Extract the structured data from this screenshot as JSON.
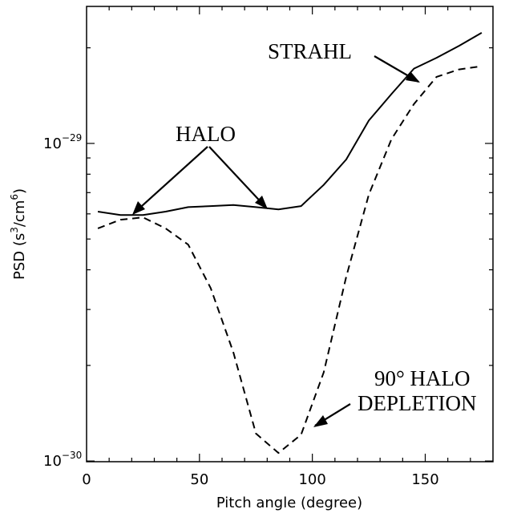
{
  "chart_data": {
    "type": "line",
    "title": "",
    "xlabel": "Pitch angle (degree)",
    "ylabel_main": "PSD (s",
    "ylabel_exp1": "3",
    "ylabel_mid": "/cm",
    "ylabel_exp2": "6",
    "ylabel_end": ")",
    "xlim": [
      0,
      180
    ],
    "ylim": [
      9.95e-31,
      2.7e-29
    ],
    "yscale": "log",
    "grid": false,
    "x_ticks": [
      0,
      50,
      100,
      150
    ],
    "x_tick_labels": [
      "0",
      "50",
      "100",
      "150"
    ],
    "y_major_ticks": [
      1e-30,
      1e-29
    ],
    "y_tick_labels": [
      {
        "base": "10",
        "exp": "−30"
      },
      {
        "base": "10",
        "exp": "−29"
      }
    ],
    "series": [
      {
        "style": "solid",
        "x": [
          5,
          15,
          25,
          35,
          45,
          55,
          65,
          75,
          85,
          95,
          105,
          115,
          125,
          135,
          145,
          155,
          165,
          175
        ],
        "values": [
          6.1e-30,
          5.95e-30,
          5.95e-30,
          6.1e-30,
          6.3e-30,
          6.35e-30,
          6.4e-30,
          6.3e-30,
          6.2e-30,
          6.35e-30,
          7.4e-30,
          8.9e-30,
          1.18e-29,
          1.43e-29,
          1.72e-29,
          1.86e-29,
          2.03e-29,
          2.23e-29
        ]
      },
      {
        "style": "dashed",
        "x": [
          5,
          15,
          25,
          35,
          45,
          55,
          65,
          75,
          85,
          95,
          105,
          115,
          125,
          135,
          145,
          155,
          165,
          175
        ],
        "values": [
          5.4e-30,
          5.75e-30,
          5.85e-30,
          5.4e-30,
          4.8e-30,
          3.5e-30,
          2.2e-30,
          1.22e-30,
          1.06e-30,
          1.21e-30,
          1.9e-30,
          3.8e-30,
          6.9e-30,
          1.03e-29,
          1.33e-29,
          1.62e-29,
          1.71e-29,
          1.75e-29
        ]
      }
    ],
    "annotations": {
      "strahl": "STRAHL",
      "halo": "HALO",
      "depletion_line1": "90° HALO",
      "depletion_line2": "DEPLETION"
    }
  }
}
